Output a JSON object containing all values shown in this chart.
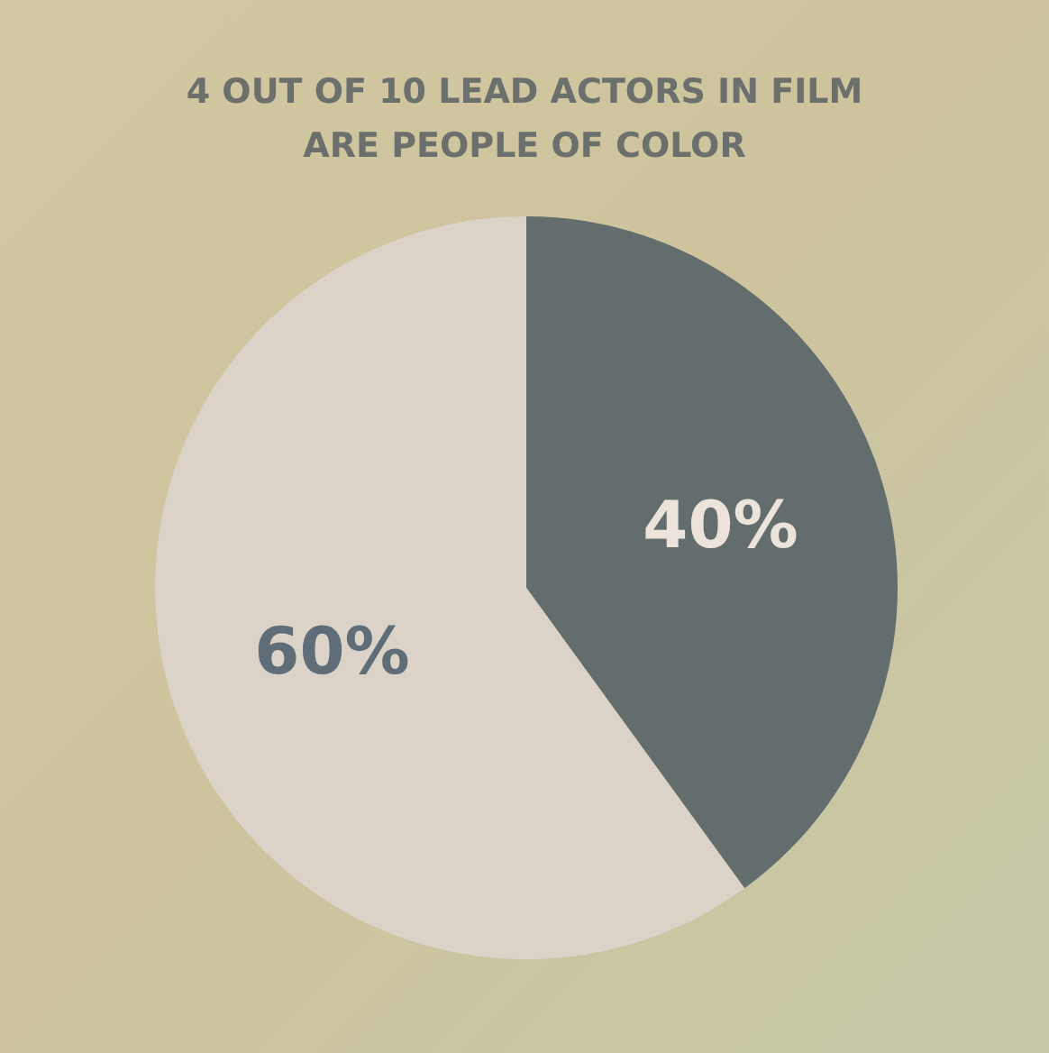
{
  "chart_data": {
    "type": "pie",
    "title": "4 OUT OF 10 LEAD ACTORS IN FILM\nARE PEOPLE OF COLOR",
    "categories": [
      null,
      null
    ],
    "values": [
      40,
      60
    ],
    "colors": [
      "#636d6e",
      "#dcd3c8"
    ],
    "value_labels": [
      "40%",
      "60%"
    ]
  }
}
